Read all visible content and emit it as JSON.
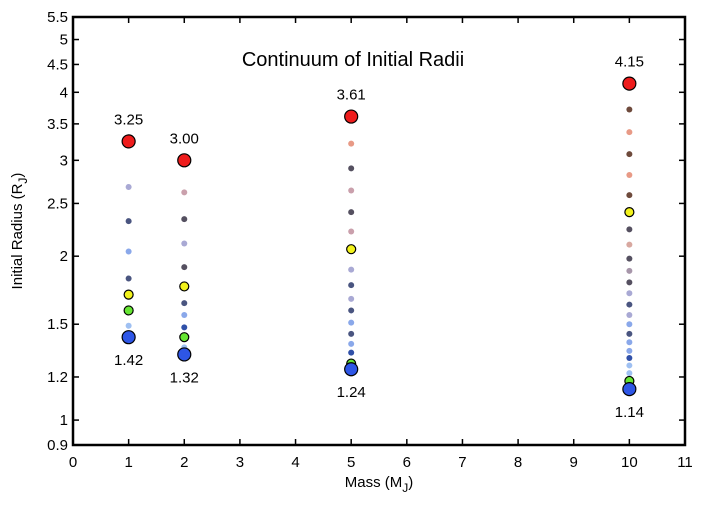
{
  "chart_data": {
    "type": "scatter",
    "title": "Continuum of Initial Radii",
    "xlabel": "Mass (M",
    "xlabel_sub": "J",
    "xlabel_close": ")",
    "ylabel": "Initial Radius (R",
    "ylabel_sub": "J",
    "ylabel_close": ")",
    "xlim": [
      0,
      11
    ],
    "ylim": [
      0.9,
      5.5
    ],
    "yscale": "log",
    "xticks": [
      0,
      1,
      2,
      3,
      4,
      5,
      6,
      7,
      8,
      9,
      10,
      11
    ],
    "xtick_labels": [
      "0",
      "1",
      "2",
      "3",
      "4",
      "5",
      "6",
      "7",
      "8",
      "9",
      "10",
      "11"
    ],
    "yticks": [
      0.9,
      1,
      1.2,
      1.5,
      2,
      2.5,
      3,
      3.5,
      4,
      4.5,
      5,
      5.5
    ],
    "ytick_labels": [
      "0.9",
      "1",
      "1.2",
      "1.5",
      "2",
      "2.5",
      "3",
      "3.5",
      "4",
      "4.5",
      "5",
      "5.5"
    ],
    "grid": false,
    "colors": {
      "red": "#ee1c1c",
      "blue": "#2e56e6",
      "yellow": "#f2f21c",
      "green": "#66e633",
      "light_purple": "#a9a9d4",
      "dark_slate": "#4a5580",
      "light_blue": "#8aa8ea",
      "mid_slate": "#5a6690",
      "pale_blue": "#9fc0f2",
      "rose": "#caa0ac",
      "dark_gray": "#555060",
      "mauve": "#a796aa",
      "dark_blue": "#3050a8",
      "salmon": "#e89a86",
      "brown": "#6e4a3c",
      "pink_beige": "#d8a8a0"
    },
    "series": [
      {
        "mass": 1,
        "max_label": "3.25",
        "min_label": "1.42",
        "points": [
          {
            "r": 3.25,
            "role": "max",
            "color": "red"
          },
          {
            "r": 2.68,
            "color": "light_purple"
          },
          {
            "r": 2.32,
            "color": "dark_slate"
          },
          {
            "r": 2.04,
            "color": "light_blue"
          },
          {
            "r": 1.82,
            "color": "dark_slate"
          },
          {
            "r": 1.7,
            "role": "mark",
            "color": "yellow"
          },
          {
            "r": 1.59,
            "role": "mark",
            "color": "green"
          },
          {
            "r": 1.49,
            "color": "pale_blue"
          },
          {
            "r": 1.42,
            "role": "min",
            "color": "blue"
          }
        ]
      },
      {
        "mass": 2,
        "max_label": "3.00",
        "min_label": "1.32",
        "points": [
          {
            "r": 3.0,
            "role": "max",
            "color": "red"
          },
          {
            "r": 2.62,
            "color": "rose"
          },
          {
            "r": 2.34,
            "color": "dark_gray"
          },
          {
            "r": 2.11,
            "color": "light_purple"
          },
          {
            "r": 1.91,
            "color": "dark_gray"
          },
          {
            "r": 1.76,
            "role": "mark",
            "color": "yellow"
          },
          {
            "r": 1.64,
            "color": "dark_slate"
          },
          {
            "r": 1.56,
            "color": "light_blue"
          },
          {
            "r": 1.48,
            "color": "dark_blue"
          },
          {
            "r": 1.42,
            "role": "mark",
            "color": "green"
          },
          {
            "r": 1.36,
            "color": "pale_blue"
          },
          {
            "r": 1.32,
            "role": "min",
            "color": "blue"
          }
        ]
      },
      {
        "mass": 5,
        "max_label": "3.61",
        "min_label": "1.24",
        "points": [
          {
            "r": 3.61,
            "role": "max",
            "color": "red"
          },
          {
            "r": 3.22,
            "color": "salmon"
          },
          {
            "r": 2.9,
            "color": "dark_gray"
          },
          {
            "r": 2.64,
            "color": "rose"
          },
          {
            "r": 2.41,
            "color": "dark_gray"
          },
          {
            "r": 2.22,
            "color": "rose"
          },
          {
            "r": 2.06,
            "role": "mark",
            "color": "yellow"
          },
          {
            "r": 1.89,
            "color": "light_purple"
          },
          {
            "r": 1.77,
            "color": "dark_slate"
          },
          {
            "r": 1.67,
            "color": "light_purple"
          },
          {
            "r": 1.59,
            "color": "dark_slate"
          },
          {
            "r": 1.51,
            "color": "light_blue"
          },
          {
            "r": 1.44,
            "color": "dark_slate"
          },
          {
            "r": 1.38,
            "color": "light_blue"
          },
          {
            "r": 1.33,
            "color": "dark_blue"
          },
          {
            "r": 1.27,
            "role": "mark",
            "color": "green"
          },
          {
            "r": 1.24,
            "role": "min",
            "color": "blue"
          }
        ]
      },
      {
        "mass": 10,
        "max_label": "4.15",
        "min_label": "1.14",
        "points": [
          {
            "r": 4.15,
            "role": "max",
            "color": "red"
          },
          {
            "r": 3.72,
            "color": "brown"
          },
          {
            "r": 3.38,
            "color": "salmon"
          },
          {
            "r": 3.08,
            "color": "brown"
          },
          {
            "r": 2.82,
            "color": "salmon"
          },
          {
            "r": 2.59,
            "color": "brown"
          },
          {
            "r": 2.41,
            "role": "mark",
            "color": "yellow"
          },
          {
            "r": 2.24,
            "color": "dark_gray"
          },
          {
            "r": 2.1,
            "color": "pink_beige"
          },
          {
            "r": 1.98,
            "color": "dark_gray"
          },
          {
            "r": 1.88,
            "color": "mauve"
          },
          {
            "r": 1.79,
            "color": "dark_gray"
          },
          {
            "r": 1.71,
            "color": "light_purple"
          },
          {
            "r": 1.63,
            "color": "dark_slate"
          },
          {
            "r": 1.56,
            "color": "light_purple"
          },
          {
            "r": 1.5,
            "color": "light_blue"
          },
          {
            "r": 1.44,
            "color": "dark_slate"
          },
          {
            "r": 1.39,
            "color": "light_blue"
          },
          {
            "r": 1.34,
            "color": "light_blue"
          },
          {
            "r": 1.3,
            "color": "dark_blue"
          },
          {
            "r": 1.26,
            "color": "pale_blue"
          },
          {
            "r": 1.22,
            "color": "pale_blue"
          },
          {
            "r": 1.18,
            "role": "mark",
            "color": "green"
          },
          {
            "r": 1.14,
            "role": "min",
            "color": "blue"
          }
        ]
      }
    ]
  }
}
